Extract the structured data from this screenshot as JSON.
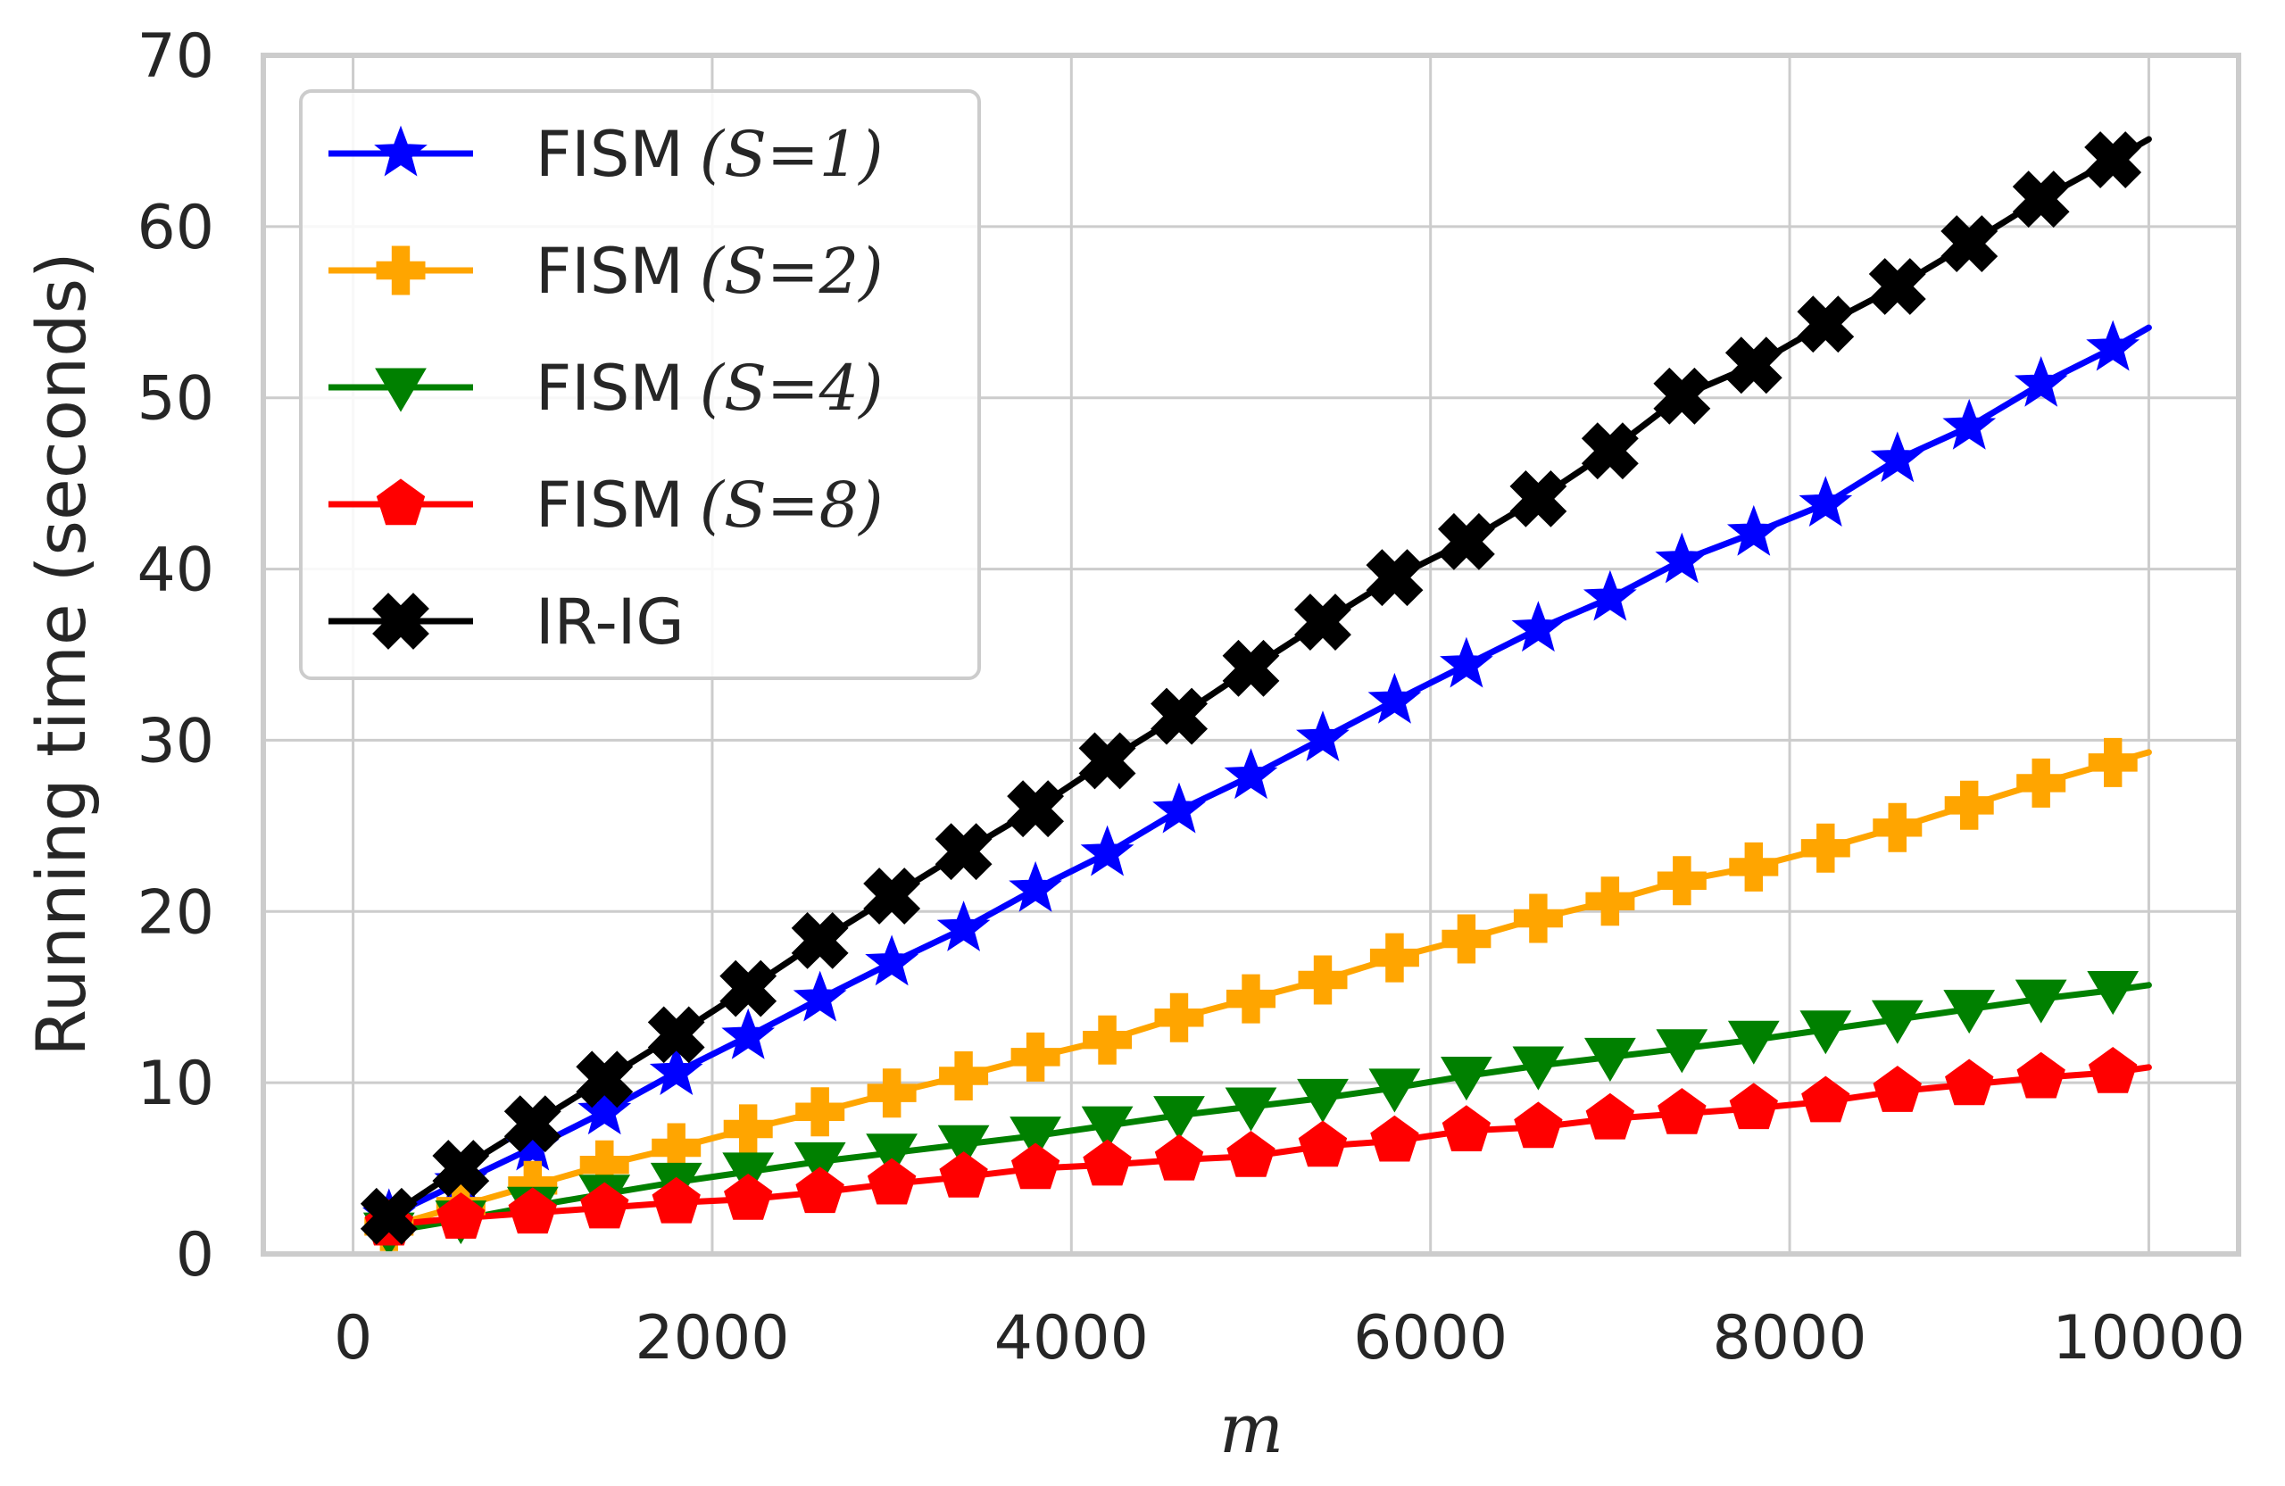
{
  "chart_data": {
    "type": "line",
    "title": "",
    "xlabel": "m",
    "ylabel": "Running time (seconds)",
    "xlim": [
      -500,
      10500
    ],
    "ylim": [
      0,
      70
    ],
    "xticks": [
      0,
      2000,
      4000,
      6000,
      8000,
      10000
    ],
    "yticks": [
      0,
      10,
      20,
      30,
      40,
      50,
      60,
      70
    ],
    "xtick_labels": [
      "0",
      "2000",
      "4000",
      "6000",
      "8000",
      "10000"
    ],
    "ytick_labels": [
      "0",
      "10",
      "20",
      "30",
      "40",
      "50",
      "60",
      "70"
    ],
    "grid": true,
    "legend_position": "top-left",
    "x": [
      200,
      600,
      1000,
      1400,
      1800,
      2200,
      2600,
      3000,
      3400,
      3800,
      4200,
      4600,
      5000,
      5400,
      5800,
      6200,
      6600,
      7000,
      7400,
      7800,
      8200,
      8600,
      9000,
      9400,
      9800
    ],
    "series": [
      {
        "name": "FISM",
        "name_math": "(S=1)",
        "color": "#0000ff",
        "marker": "star",
        "values": [
          2.2,
          4.2,
          6.2,
          8.3,
          10.6,
          12.7,
          14.9,
          17.0,
          19.0,
          21.3,
          23.4,
          25.9,
          27.9,
          30.1,
          32.3,
          34.4,
          36.5,
          38.3,
          40.5,
          42.1,
          43.8,
          46.4,
          48.3,
          50.8,
          52.9
        ],
        "end_value": 54.1
      },
      {
        "name": "FISM",
        "name_math": "(S=2)",
        "color": "#ffa500",
        "marker": "plus",
        "values": [
          1.6,
          2.8,
          4.0,
          5.2,
          6.2,
          7.3,
          8.3,
          9.4,
          10.4,
          11.5,
          12.5,
          13.8,
          14.9,
          16.0,
          17.3,
          18.4,
          19.6,
          20.6,
          21.8,
          22.6,
          23.7,
          24.9,
          26.2,
          27.5,
          28.7
        ],
        "end_value": 29.3
      },
      {
        "name": "FISM",
        "name_math": "(S=4)",
        "color": "#008000",
        "marker": "triangle-down",
        "values": [
          1.3,
          2.0,
          2.8,
          3.5,
          4.2,
          4.8,
          5.4,
          5.9,
          6.4,
          6.9,
          7.5,
          8.1,
          8.6,
          9.1,
          9.7,
          10.4,
          11.0,
          11.5,
          12.0,
          12.5,
          13.1,
          13.7,
          14.3,
          14.9,
          15.4
        ],
        "end_value": 15.7
      },
      {
        "name": "FISM",
        "name_math": "(S=8)",
        "color": "#ff0000",
        "marker": "pentagon",
        "values": [
          1.7,
          2.1,
          2.4,
          2.7,
          3.0,
          3.2,
          3.6,
          4.1,
          4.5,
          5.0,
          5.2,
          5.5,
          5.7,
          6.3,
          6.6,
          7.2,
          7.4,
          7.9,
          8.2,
          8.5,
          8.9,
          9.5,
          9.9,
          10.3,
          10.6
        ],
        "end_value": 10.9
      },
      {
        "name": "IR-IG",
        "name_math": "",
        "color": "#000000",
        "marker": "x-filled",
        "values": [
          2.2,
          5.0,
          7.6,
          10.2,
          12.8,
          15.5,
          18.3,
          20.9,
          23.5,
          26.0,
          28.8,
          31.4,
          34.2,
          36.9,
          39.5,
          41.6,
          44.1,
          46.9,
          50.1,
          51.9,
          54.3,
          56.5,
          59.0,
          61.6,
          63.9
        ],
        "end_value": 65.1
      }
    ]
  }
}
